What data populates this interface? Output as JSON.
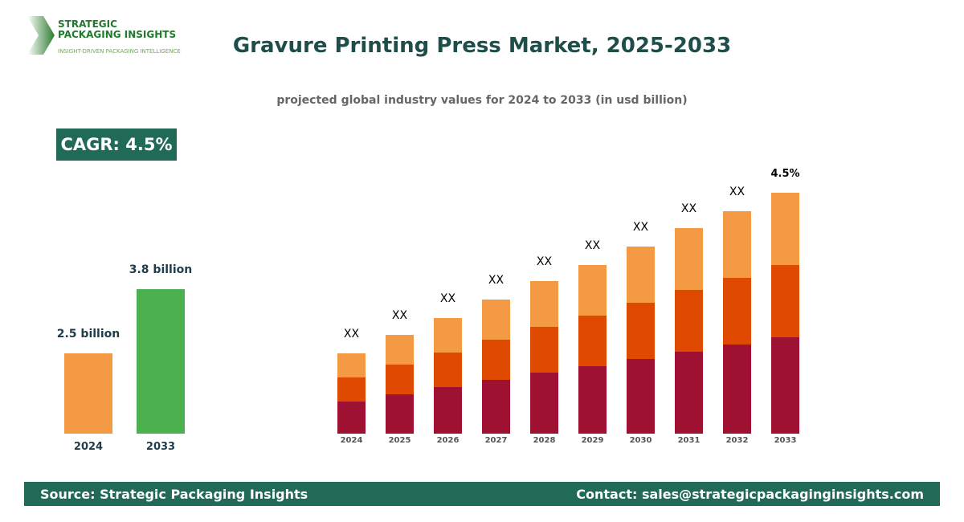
{
  "logo": {
    "line1": "STRATEGIC",
    "line2": "PACKAGING INSIGHTS",
    "tagline": "INSIGHT-DRIVEN PACKAGING INTELLIGENCE"
  },
  "title": "Gravure Printing Press Market, 2025-2033",
  "subtitle": "projected global industry values for 2024 to 2033 (in usd billion)",
  "cagr_label": "CAGR: 4.5%",
  "footer": {
    "source": "Source: Strategic Packaging Insights",
    "contact": "Contact: sales@strategicpackaginginsights.com"
  },
  "chart_data": [
    {
      "type": "bar",
      "categories": [
        "2024",
        "2033"
      ],
      "values": [
        2.5,
        3.8
      ],
      "data_labels": [
        "2.5 billion",
        "3.8 billion"
      ],
      "colors": [
        "#f49a44",
        "#4cb04f"
      ]
    },
    {
      "type": "bar",
      "stacked": true,
      "categories": [
        "2024",
        "2025",
        "2026",
        "2027",
        "2028",
        "2029",
        "2030",
        "2031",
        "2032",
        "2033"
      ],
      "series": [
        {
          "color": "#9e1133",
          "values": [
            40,
            49,
            58,
            67,
            76,
            84,
            93,
            102,
            111,
            120
          ]
        },
        {
          "color": "#e04a00",
          "values": [
            30,
            37,
            43,
            50,
            57,
            63,
            70,
            77,
            83,
            90
          ]
        },
        {
          "color": "#f49a44",
          "values": [
            30,
            37,
            43,
            50,
            57,
            63,
            70,
            77,
            83,
            90
          ]
        }
      ],
      "data_labels": [
        "XX",
        "XX",
        "XX",
        "XX",
        "XX",
        "XX",
        "XX",
        "XX",
        "XX",
        "4.5%"
      ],
      "axes_visible": false,
      "grid": false
    }
  ]
}
